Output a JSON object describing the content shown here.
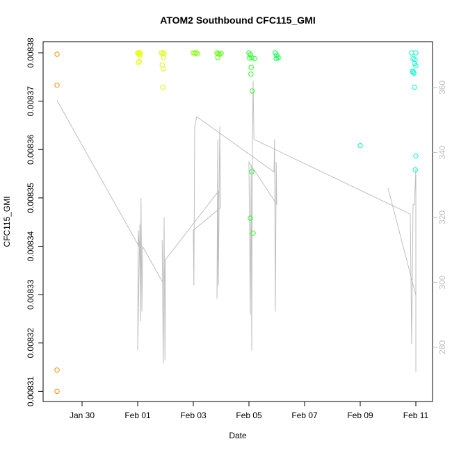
{
  "chart_data": {
    "type": "scatter",
    "title": "ATOM2 Southbound CFC115_GMI",
    "x_label": "Date",
    "y_label": "CFC115_GMI",
    "xlim": [
      -1.4,
      12.6
    ],
    "xticks": [
      {
        "value": 0,
        "label": "Jan 30"
      },
      {
        "value": 2,
        "label": "Feb 01"
      },
      {
        "value": 4,
        "label": "Feb 03"
      },
      {
        "value": 6,
        "label": "Feb 05"
      },
      {
        "value": 8,
        "label": "Feb 07"
      },
      {
        "value": 10,
        "label": "Feb 09"
      },
      {
        "value": 12,
        "label": "Feb 11"
      }
    ],
    "ylim": [
      0.0083079,
      0.0083823
    ],
    "yticks": [
      0.00831,
      0.00832,
      0.00833,
      0.00834,
      0.00835,
      0.00836,
      0.00837,
      0.00838
    ],
    "y2lim": [
      263.3,
      374.1
    ],
    "y2ticks": [
      280,
      300,
      320,
      340,
      360
    ],
    "y2_color": "#bebebe",
    "points": {
      "x": [
        -0.9,
        -0.9,
        -0.9,
        -0.9,
        2.0,
        2.03,
        2.05,
        2.08,
        2.1,
        2.02,
        2.06,
        2.04,
        2.85,
        2.9,
        2.93,
        2.88,
        2.95,
        2.92,
        2.9,
        4.0,
        4.05,
        4.1,
        4.15,
        4.85,
        4.9,
        4.95,
        5.0,
        4.88,
        6.0,
        6.05,
        6.1,
        6.08,
        6.02,
        6.07,
        6.12,
        6.1,
        6.05,
        6.15,
        6.2,
        6.95,
        7.0,
        7.05,
        6.98,
        10.0,
        11.85,
        11.9,
        11.95,
        12.0,
        11.88,
        11.93,
        11.97,
        12.0,
        11.95,
        11.9,
        12.0,
        11.98
      ],
      "values": [
        0.0083797,
        0.0083733,
        0.0083144,
        0.00831,
        0.00838,
        0.0083798,
        0.00838,
        0.0083795,
        0.00838,
        0.008378,
        0.0083782,
        0.0083797,
        0.00838,
        0.0083798,
        0.008379,
        0.0083775,
        0.00838,
        0.0083767,
        0.0083729,
        0.00838,
        0.0083799,
        0.00838,
        0.0083798,
        0.00838,
        0.0083798,
        0.0083797,
        0.0083799,
        0.008379,
        0.00838,
        0.0083796,
        0.008379,
        0.008377,
        0.0083789,
        0.0083756,
        0.0083721,
        0.0083554,
        0.0083458,
        0.0083427,
        0.0083788,
        0.00838,
        0.0083795,
        0.008379,
        0.0083788,
        0.0083608,
        0.00838,
        0.0083788,
        0.0083778,
        0.00838,
        0.0083762,
        0.0083758,
        0.0083786,
        0.0083773,
        0.0083729,
        0.008376,
        0.0083587,
        0.0083558
      ],
      "colors": [
        "#ff8c00",
        "#ff8c00",
        "#ff8c00",
        "#ff8c00",
        "#e6ff00",
        "#e6ff00",
        "#e6ff00",
        "#e6ff00",
        "#e6ff00",
        "#e6ff00",
        "#e6ff00",
        "#e6ff00",
        "#d4ff00",
        "#d4ff00",
        "#d4ff00",
        "#d4ff00",
        "#d4ff00",
        "#d4ff00",
        "#d4ff00",
        "#80ff00",
        "#80ff00",
        "#80ff00",
        "#80ff00",
        "#55ff00",
        "#55ff00",
        "#55ff00",
        "#55ff00",
        "#55ff00",
        "#22ff22",
        "#22ff22",
        "#22ff22",
        "#22ff22",
        "#22ff22",
        "#22ff22",
        "#22ff22",
        "#22ff22",
        "#22ff22",
        "#22ff22",
        "#22ff22",
        "#00ff40",
        "#00ff40",
        "#00ff40",
        "#00ff40",
        "#00ff9f",
        "#00ffc8",
        "#00ffc8",
        "#00ffc8",
        "#00ffc8",
        "#00ffc8",
        "#00ffc8",
        "#00ffc8",
        "#00ffc8",
        "#00ffc8",
        "#00ffc8",
        "#00ffc8",
        "#00ffc8"
      ]
    },
    "series": [
      {
        "color": "#bebebe",
        "axis": "y2",
        "x": [
          -0.9,
          2.05,
          2.02,
          2.0,
          2.08,
          2.1,
          2.12,
          2.15,
          2.18,
          2.9,
          2.88,
          2.92,
          2.95,
          2.98,
          3.0,
          4.9,
          4.85,
          4.88,
          4.9,
          4.95,
          4.98,
          4.0,
          4.02,
          4.05,
          4.1,
          4.12,
          6.9,
          6.92,
          6.95,
          6.98,
          7.0,
          6.0,
          6.05,
          6.08,
          6.1,
          6.12,
          6.15,
          6.18,
          11.8,
          11.85,
          11.9,
          11.95,
          12.0,
          12.0,
          null,
          11.0,
          12.0
        ],
        "values": [
          356,
          311,
          316,
          279,
          318,
          288,
          326,
          291,
          311,
          300,
          313,
          275,
          320,
          276,
          307,
          328,
          295,
          344,
          299,
          348,
          323,
          316,
          299,
          348,
          350,
          351,
          334,
          344,
          291,
          337,
          324,
          337,
          290,
          336,
          279,
          339,
          362,
          344,
          321,
          281,
          324,
          324,
          335,
          272.5,
          null,
          329,
          296
        ]
      }
    ]
  }
}
